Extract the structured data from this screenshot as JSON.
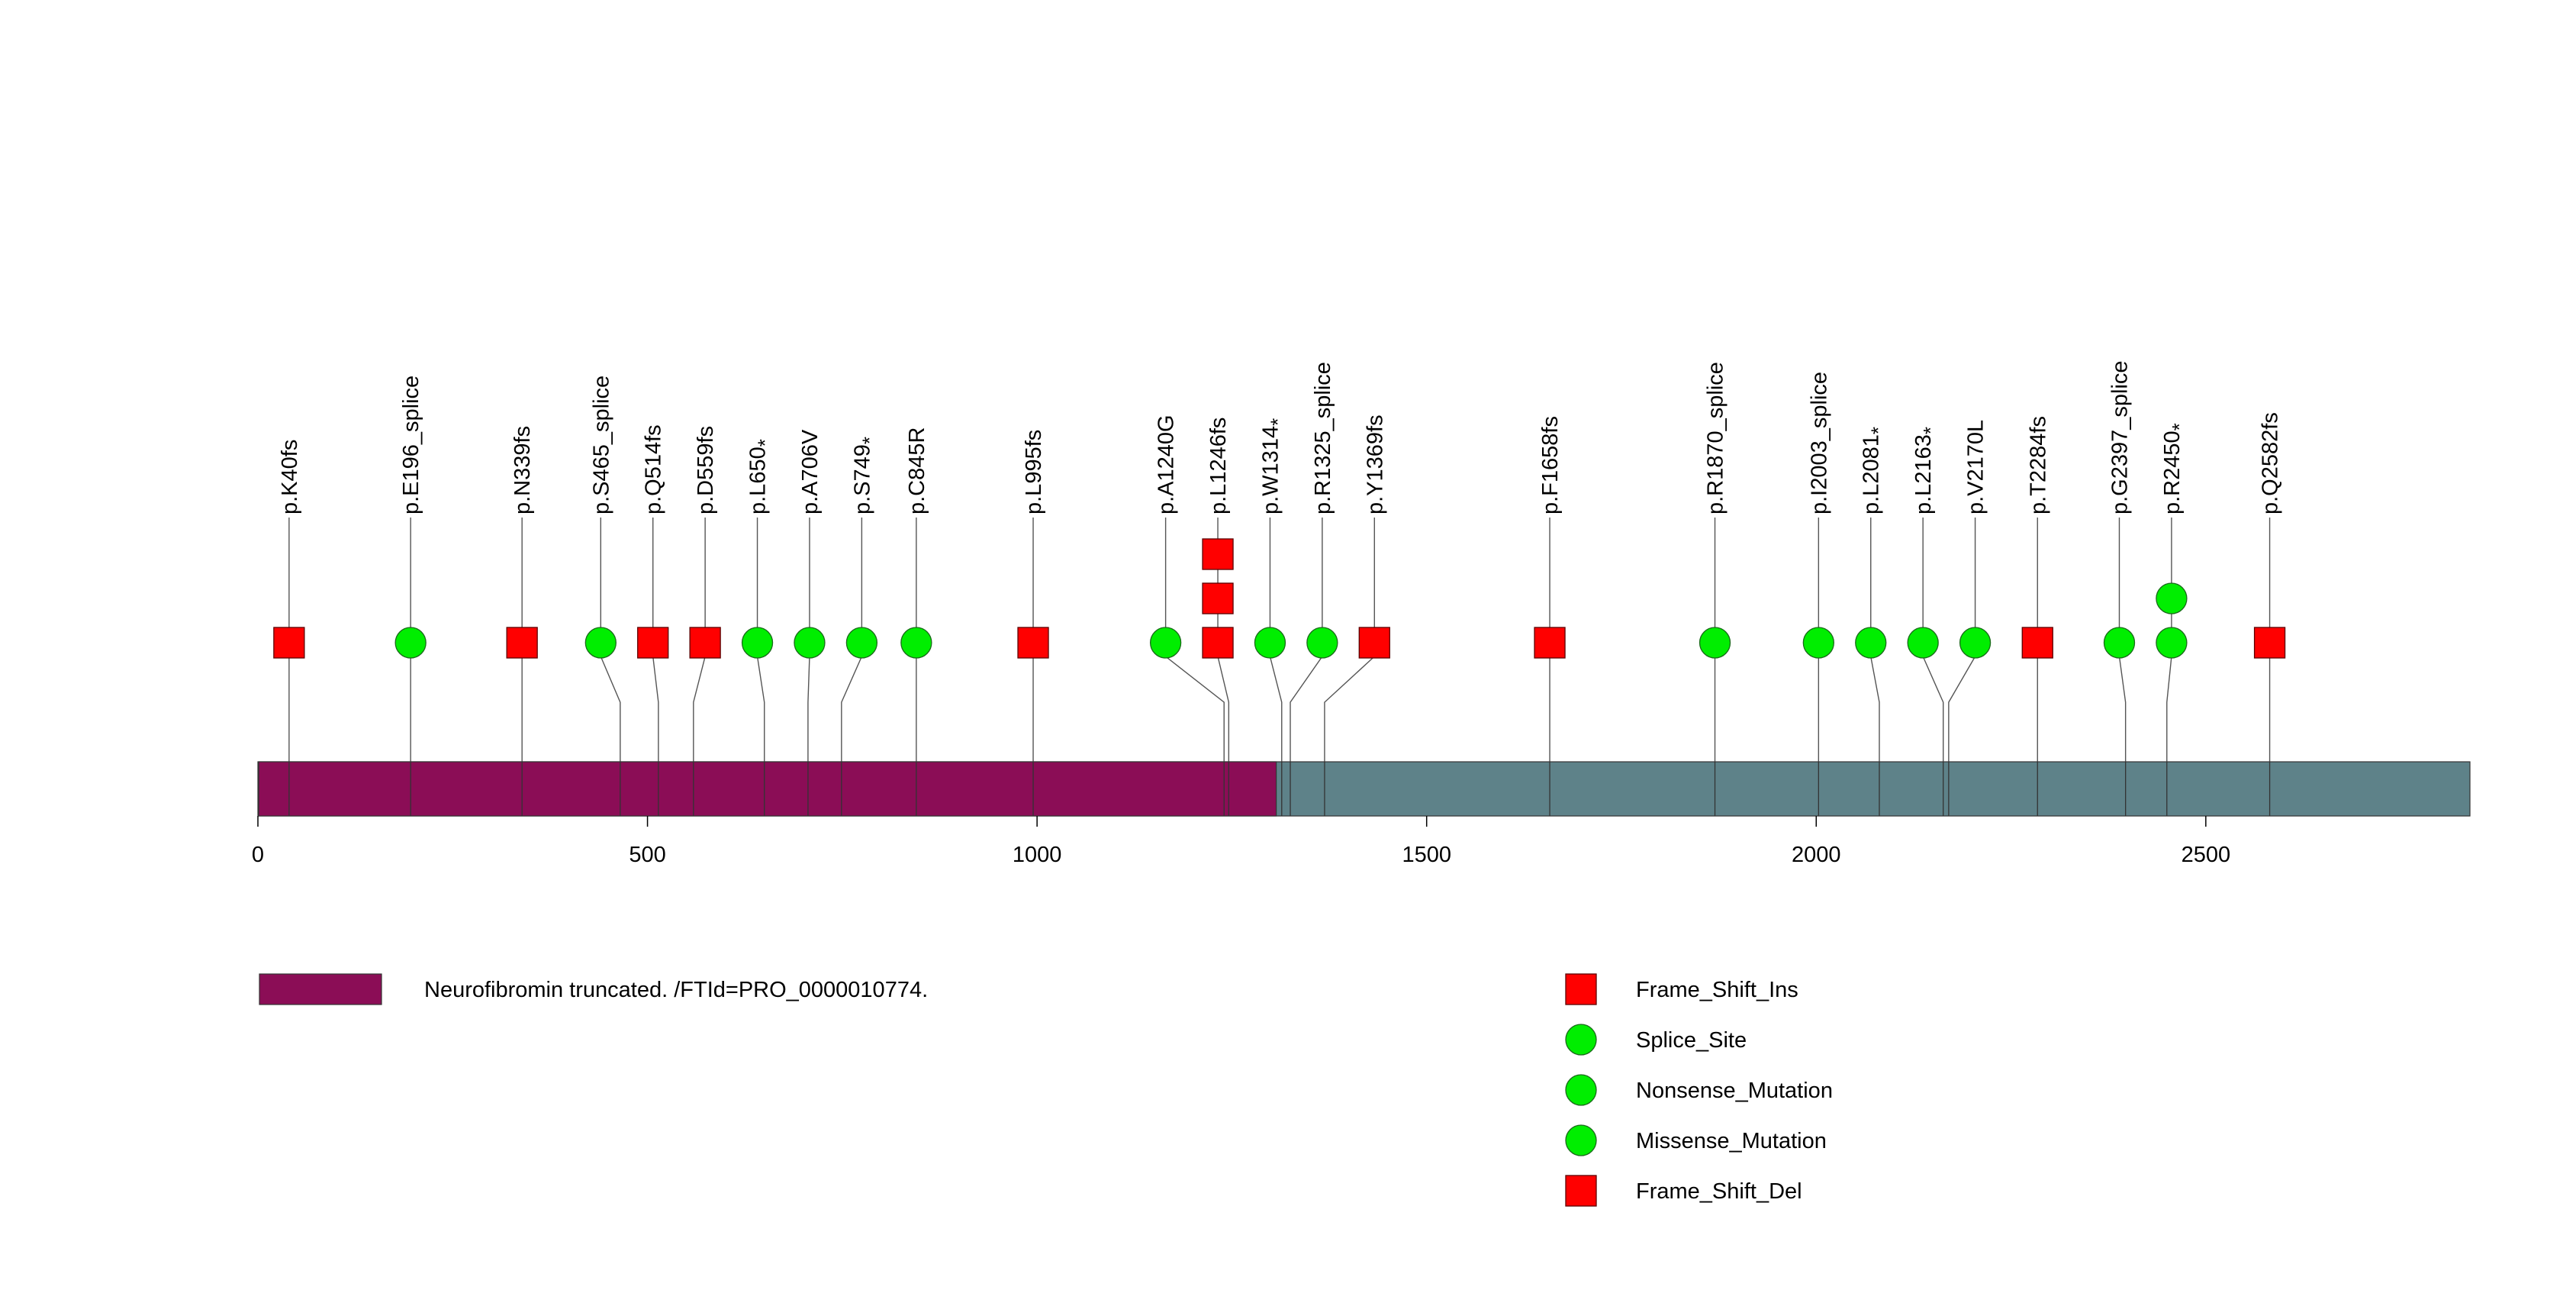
{
  "chart_data": {
    "type": "lollipop",
    "title": "",
    "xlabel": "",
    "ylabel": "",
    "xlim": [
      0,
      2839
    ],
    "x_ticks": [
      0,
      500,
      1000,
      1500,
      2000,
      2500
    ],
    "protein_length": 2839,
    "domains": [
      {
        "name": "Neurofibromin truncated. /FTId=PRO_0000010774.",
        "start": 1,
        "end": 1307,
        "color": "#8b0d56"
      }
    ],
    "backbone_color": "#5e8289",
    "mutation_types": [
      {
        "name": "Frame_Shift_Ins",
        "shape": "square",
        "color": "#ff0000"
      },
      {
        "name": "Splice_Site",
        "shape": "circle",
        "color": "#00ee00"
      },
      {
        "name": "Nonsense_Mutation",
        "shape": "circle",
        "color": "#00ee00"
      },
      {
        "name": "Missense_Mutation",
        "shape": "circle",
        "color": "#00ee00"
      },
      {
        "name": "Frame_Shift_Del",
        "shape": "square",
        "color": "#ff0000"
      }
    ],
    "mutations": [
      {
        "label": "p.K40fs",
        "base": "p.K40fs",
        "star": false,
        "pos": 40,
        "type": "Frame_Shift_Del",
        "count": 1,
        "disp": 40
      },
      {
        "label": "p.E196_splice",
        "base": "p.E196_splice",
        "star": false,
        "pos": 196,
        "type": "Splice_Site",
        "count": 1,
        "disp": 196
      },
      {
        "label": "p.N339fs",
        "base": "p.N339fs",
        "star": false,
        "pos": 339,
        "type": "Frame_Shift_Del",
        "count": 1,
        "disp": 339
      },
      {
        "label": "p.S465_splice",
        "base": "p.S465_splice",
        "star": false,
        "pos": 465,
        "type": "Splice_Site",
        "count": 1,
        "disp": 440
      },
      {
        "label": "p.Q514fs",
        "base": "p.Q514fs",
        "star": false,
        "pos": 514,
        "type": "Frame_Shift_Del",
        "count": 1,
        "disp": 507
      },
      {
        "label": "p.D559fs",
        "base": "p.D559fs",
        "star": false,
        "pos": 559,
        "type": "Frame_Shift_Del",
        "count": 1,
        "disp": 574
      },
      {
        "label": "p.L650*",
        "base": "p.L650",
        "star": true,
        "pos": 650,
        "type": "Nonsense_Mutation",
        "count": 1,
        "disp": 641
      },
      {
        "label": "p.A706V",
        "base": "p.A706V",
        "star": false,
        "pos": 706,
        "type": "Missense_Mutation",
        "count": 1,
        "disp": 708
      },
      {
        "label": "p.S749*",
        "base": "p.S749",
        "star": true,
        "pos": 749,
        "type": "Nonsense_Mutation",
        "count": 1,
        "disp": 775
      },
      {
        "label": "p.C845R",
        "base": "p.C845R",
        "star": false,
        "pos": 845,
        "type": "Missense_Mutation",
        "count": 1,
        "disp": 845
      },
      {
        "label": "p.L995fs",
        "base": "p.L995fs",
        "star": false,
        "pos": 995,
        "type": "Frame_Shift_Del",
        "count": 1,
        "disp": 995
      },
      {
        "label": "p.A1240G",
        "base": "p.A1240G",
        "star": false,
        "pos": 1240,
        "type": "Missense_Mutation",
        "count": 1,
        "disp": 1165
      },
      {
        "label": "p.L1246fs",
        "base": "p.L1246fs",
        "star": false,
        "pos": 1246,
        "type": "Frame_Shift_Del",
        "count": 3,
        "disp": 1232
      },
      {
        "label": "p.W1314*",
        "base": "p.W1314",
        "star": true,
        "pos": 1314,
        "type": "Nonsense_Mutation",
        "count": 1,
        "disp": 1299
      },
      {
        "label": "p.R1325_splice",
        "base": "p.R1325_splice",
        "star": false,
        "pos": 1325,
        "type": "Splice_Site",
        "count": 1,
        "disp": 1366
      },
      {
        "label": "p.Y1369fs",
        "base": "p.Y1369fs",
        "star": false,
        "pos": 1369,
        "type": "Frame_Shift_Del",
        "count": 1,
        "disp": 1433
      },
      {
        "label": "p.F1658fs",
        "base": "p.F1658fs",
        "star": false,
        "pos": 1658,
        "type": "Frame_Shift_Del",
        "count": 1,
        "disp": 1658
      },
      {
        "label": "p.R1870_splice",
        "base": "p.R1870_splice",
        "star": false,
        "pos": 1870,
        "type": "Splice_Site",
        "count": 1,
        "disp": 1870
      },
      {
        "label": "p.I2003_splice",
        "base": "p.I2003_splice",
        "star": false,
        "pos": 2003,
        "type": "Splice_Site",
        "count": 1,
        "disp": 2003
      },
      {
        "label": "p.L2081*",
        "base": "p.L2081",
        "star": true,
        "pos": 2081,
        "type": "Nonsense_Mutation",
        "count": 1,
        "disp": 2070
      },
      {
        "label": "p.L2163*",
        "base": "p.L2163",
        "star": true,
        "pos": 2163,
        "type": "Nonsense_Mutation",
        "count": 1,
        "disp": 2137
      },
      {
        "label": "p.V2170L",
        "base": "p.V2170L",
        "star": false,
        "pos": 2170,
        "type": "Missense_Mutation",
        "count": 1,
        "disp": 2204
      },
      {
        "label": "p.T2284fs",
        "base": "p.T2284fs",
        "star": false,
        "pos": 2284,
        "type": "Frame_Shift_Del",
        "count": 1,
        "disp": 2284
      },
      {
        "label": "p.G2397_splice",
        "base": "p.G2397_splice",
        "star": false,
        "pos": 2397,
        "type": "Splice_Site",
        "count": 1,
        "disp": 2389
      },
      {
        "label": "p.R2450*",
        "base": "p.R2450",
        "star": true,
        "pos": 2450,
        "type": "Nonsense_Mutation",
        "count": 2,
        "disp": 2456
      },
      {
        "label": "p.Q2582fs",
        "base": "p.Q2582fs",
        "star": false,
        "pos": 2582,
        "type": "Frame_Shift_Del",
        "count": 1,
        "disp": 2582
      }
    ]
  }
}
